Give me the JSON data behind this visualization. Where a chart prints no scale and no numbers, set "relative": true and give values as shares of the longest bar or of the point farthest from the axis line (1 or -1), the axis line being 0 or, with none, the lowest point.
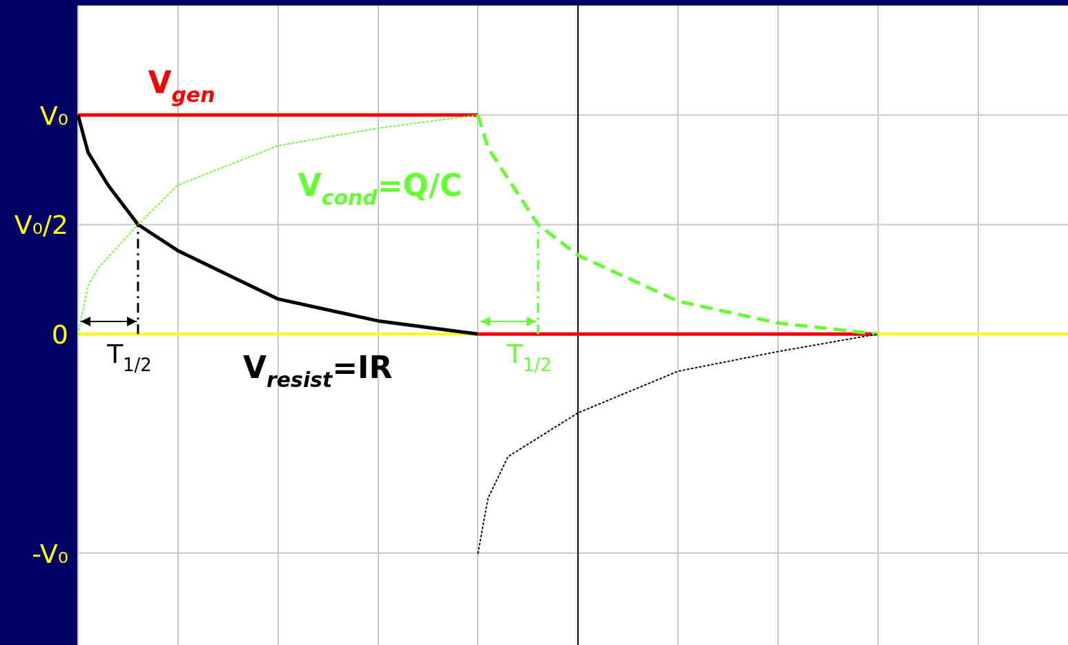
{
  "chart_data": {
    "type": "line",
    "relative": true,
    "grid": true,
    "legend": false,
    "marker": "none",
    "categories": [
      null,
      null,
      null,
      null,
      null,
      null,
      null,
      null,
      null,
      null,
      null,
      null,
      null,
      null,
      null,
      null,
      null,
      null,
      null,
      null,
      null,
      null,
      null,
      null,
      null,
      null,
      null,
      null,
      null,
      null,
      null,
      null,
      null,
      null,
      null,
      null,
      null,
      null,
      null,
      null,
      null,
      null,
      null,
      null,
      null,
      null,
      null,
      null,
      null,
      null,
      null,
      null,
      null,
      null,
      null,
      null,
      null,
      null,
      null,
      null,
      null,
      null,
      null,
      null,
      null,
      null,
      null,
      null,
      null,
      null,
      null,
      null,
      null,
      null,
      null,
      null,
      null,
      null,
      null,
      null,
      null,
      null,
      null,
      null,
      null,
      null,
      null,
      null,
      null,
      null,
      null,
      null,
      null,
      null,
      null,
      null,
      null,
      null,
      null,
      null
    ],
    "ref_lines": [
      {
        "axis": "y",
        "value": 0,
        "color": "#ffff00"
      }
    ],
    "series": [
      {
        "name": "V$_{gen}$",
        "color": "#ff0000",
        "line_style": "solid",
        "values": [
          1,
          null,
          null,
          null,
          null,
          null,
          null,
          null,
          null,
          null,
          null,
          null,
          null,
          null,
          null,
          null,
          null,
          null,
          null,
          null,
          null,
          null,
          null,
          null,
          null,
          null,
          null,
          null,
          null,
          null,
          null,
          null,
          null,
          null,
          null,
          null,
          null,
          null,
          null,
          null,
          1,
          null,
          null,
          null,
          null,
          null,
          null,
          null,
          null,
          null,
          null,
          null,
          null,
          null,
          null,
          null,
          null,
          null,
          null,
          null,
          null,
          null,
          null,
          null,
          null,
          null,
          null,
          null,
          null,
          null,
          null,
          null,
          null,
          null,
          null,
          null,
          null,
          null,
          null,
          null,
          null,
          null,
          null,
          null,
          null,
          null,
          null,
          null,
          null,
          null,
          null,
          null,
          null,
          null,
          null,
          null,
          null,
          null,
          null,
          null
        ]
      },
      {
        "name": "V$_{resist}$=IR",
        "color": "#000000",
        "line_style": "solid",
        "values": [
          1,
          0.83,
          null,
          0.68,
          null,
          null,
          0.5,
          null,
          null,
          null,
          0.38,
          null,
          null,
          null,
          null,
          null,
          null,
          null,
          null,
          null,
          0.16,
          null,
          null,
          null,
          null,
          null,
          null,
          null,
          null,
          null,
          0.06,
          null,
          null,
          null,
          null,
          null,
          null,
          null,
          null,
          null,
          0,
          null,
          null,
          null,
          null,
          null,
          null,
          null,
          null,
          null,
          null,
          null,
          null,
          null,
          null,
          null,
          null,
          null,
          null,
          null,
          null,
          null,
          null,
          null,
          null,
          null,
          null,
          null,
          null,
          null,
          null,
          null,
          null,
          null,
          null,
          null,
          null,
          null,
          null,
          null,
          null,
          null,
          null,
          null,
          null,
          null,
          null,
          null,
          null,
          null,
          null,
          null,
          null,
          null,
          null,
          null,
          null,
          null,
          null,
          null
        ]
      },
      {
        "color": "#66ff33",
        "line_style": "dotted",
        "values": [
          0,
          0.22,
          0.3,
          null,
          null,
          null,
          0.5,
          null,
          null,
          null,
          0.68,
          null,
          null,
          null,
          null,
          null,
          null,
          null,
          null,
          null,
          0.86,
          null,
          null,
          null,
          null,
          null,
          null,
          null,
          null,
          null,
          0.94,
          null,
          null,
          null,
          null,
          null,
          null,
          null,
          null,
          null,
          1,
          null,
          null,
          null,
          null,
          null,
          null,
          null,
          null,
          null,
          null,
          null,
          null,
          null,
          null,
          null,
          null,
          null,
          null,
          null,
          null,
          null,
          null,
          null,
          null,
          null,
          null,
          null,
          null,
          null,
          null,
          null,
          null,
          null,
          null,
          null,
          null,
          null,
          null,
          null,
          null,
          null,
          null,
          null,
          null,
          null,
          null,
          null,
          null,
          null,
          null,
          null,
          null,
          null,
          null,
          null,
          null,
          null,
          null,
          null
        ]
      },
      {
        "name": "V$_{cond}$=Q/C",
        "color": "#66ff33",
        "line_style": "dashed",
        "values": [
          null,
          null,
          null,
          null,
          null,
          null,
          null,
          null,
          null,
          null,
          null,
          null,
          null,
          null,
          null,
          null,
          null,
          null,
          null,
          null,
          null,
          null,
          null,
          null,
          null,
          null,
          null,
          null,
          null,
          null,
          null,
          null,
          null,
          null,
          null,
          null,
          null,
          null,
          null,
          null,
          1,
          0.85,
          null,
          null,
          null,
          null,
          0.5,
          null,
          null,
          null,
          0.36,
          null,
          null,
          null,
          null,
          null,
          null,
          null,
          null,
          null,
          0.15,
          null,
          null,
          null,
          null,
          null,
          null,
          null,
          null,
          null,
          0.05,
          null,
          null,
          null,
          null,
          null,
          null,
          null,
          null,
          null,
          0,
          null,
          null,
          null,
          null,
          null,
          null,
          null,
          null,
          null,
          null,
          null,
          null,
          null,
          null,
          null,
          null,
          null,
          null,
          null
        ]
      },
      {
        "color": "#ff0000",
        "line_style": "solid",
        "values": [
          null,
          null,
          null,
          null,
          null,
          null,
          null,
          null,
          null,
          null,
          null,
          null,
          null,
          null,
          null,
          null,
          null,
          null,
          null,
          null,
          null,
          null,
          null,
          null,
          null,
          null,
          null,
          null,
          null,
          null,
          null,
          null,
          null,
          null,
          null,
          null,
          null,
          null,
          null,
          null,
          0,
          null,
          null,
          null,
          null,
          null,
          null,
          null,
          null,
          null,
          null,
          null,
          null,
          null,
          null,
          null,
          null,
          null,
          null,
          null,
          null,
          null,
          null,
          null,
          null,
          null,
          null,
          null,
          null,
          null,
          null,
          null,
          null,
          null,
          null,
          null,
          null,
          null,
          null,
          null,
          0,
          null,
          null,
          null,
          null,
          null,
          null,
          null,
          null,
          null,
          null,
          null,
          null,
          null,
          null,
          null,
          null,
          null,
          null,
          null
        ]
      },
      {
        "color": "#000000",
        "line_style": "dotted",
        "values": [
          null,
          null,
          null,
          null,
          null,
          null,
          null,
          null,
          null,
          null,
          null,
          null,
          null,
          null,
          null,
          null,
          null,
          null,
          null,
          null,
          null,
          null,
          null,
          null,
          null,
          null,
          null,
          null,
          null,
          null,
          null,
          null,
          null,
          null,
          null,
          null,
          null,
          null,
          null,
          null,
          -1,
          -0.75,
          null,
          -0.56,
          null,
          null,
          null,
          null,
          null,
          null,
          -0.36,
          null,
          null,
          null,
          null,
          null,
          null,
          null,
          null,
          null,
          -0.17,
          null,
          null,
          null,
          null,
          null,
          null,
          null,
          null,
          null,
          -0.08,
          null,
          null,
          null,
          null,
          null,
          null,
          null,
          null,
          null,
          0,
          null,
          null,
          null,
          null,
          null,
          null,
          null,
          null,
          null,
          null,
          null,
          null,
          null,
          null,
          null,
          null,
          null,
          null,
          null
        ]
      }
    ],
    "annotations": [
      "V₀",
      "V₀/2",
      "0",
      "-V₀",
      "T$_{1/2}$",
      "T$_{1/2}$"
    ]
  }
}
